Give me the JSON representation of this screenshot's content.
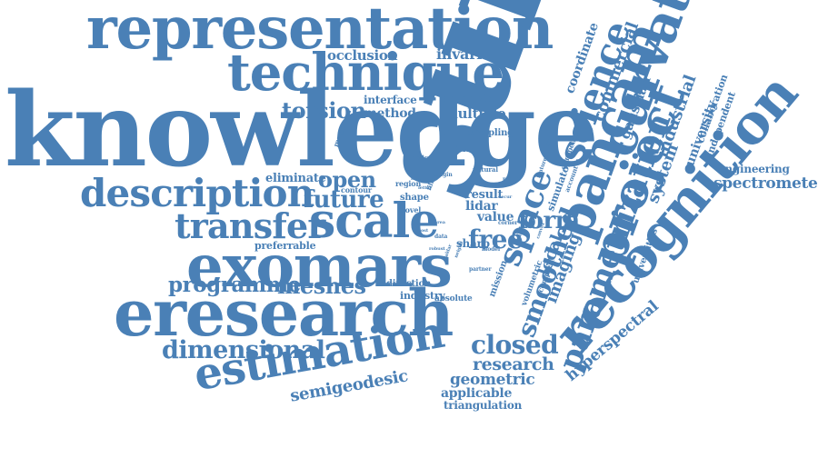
{
  "words": [
    {
      "text": "representation",
      "weight": 62
    },
    {
      "text": "technique",
      "weight": 52
    },
    {
      "text": "occlusion",
      "weight": 14
    },
    {
      "text": "invariant",
      "weight": 15
    },
    {
      "text": "knowledge",
      "weight": 100
    },
    {
      "text": "surface",
      "weight": 100
    },
    {
      "text": "interface",
      "weight": 10
    },
    {
      "text": "torsion",
      "weight": 22
    },
    {
      "text": "method",
      "weight": 13
    },
    {
      "text": "underlying",
      "weight": 9
    },
    {
      "text": "multiple",
      "weight": 14
    },
    {
      "text": "sampling",
      "weight": 8
    },
    {
      "text": "efficient",
      "weight": 6
    },
    {
      "text": "maximum",
      "weight": 6
    },
    {
      "text": "optical",
      "weight": 5
    },
    {
      "text": "eliminate",
      "weight": 12
    },
    {
      "text": "open",
      "weight": 22
    },
    {
      "text": "description",
      "weight": 45
    },
    {
      "text": "future",
      "weight": 23
    },
    {
      "text": "contour",
      "weight": 6
    },
    {
      "text": "region",
      "weight": 6
    },
    {
      "text": "shape",
      "weight": 8
    },
    {
      "text": "novel",
      "weight": 6
    },
    {
      "text": "result",
      "weight": 12
    },
    {
      "text": "lidar",
      "weight": 13
    },
    {
      "text": "value",
      "weight": 12
    },
    {
      "text": "transfer",
      "weight": 38
    },
    {
      "text": "scale",
      "weight": 48
    },
    {
      "text": "form",
      "weight": 23
    },
    {
      "text": "free",
      "weight": 25
    },
    {
      "text": "exomars",
      "weight": 60
    },
    {
      "text": "preferrable",
      "weight": 10
    },
    {
      "text": "sharp",
      "weight": 11
    },
    {
      "text": "programme",
      "weight": 22
    },
    {
      "text": "meshes",
      "weight": 22
    },
    {
      "text": "direction",
      "weight": 8
    },
    {
      "text": "industry",
      "weight": 10
    },
    {
      "text": "absolute",
      "weight": 8
    },
    {
      "text": "eresearch",
      "weight": 68
    },
    {
      "text": "dimensional",
      "weight": 27
    },
    {
      "text": "closed",
      "weight": 26
    },
    {
      "text": "estimation",
      "weight": 46
    },
    {
      "text": "research",
      "weight": 18
    },
    {
      "text": "geometric",
      "weight": 17
    },
    {
      "text": "applicable",
      "weight": 13
    },
    {
      "text": "triangulation",
      "weight": 11
    },
    {
      "text": "semigeodesic",
      "weight": 17
    },
    {
      "text": "space",
      "weight": 33
    },
    {
      "text": "local",
      "weight": 17
    },
    {
      "text": "smoothed",
      "weight": 25
    },
    {
      "text": "imaging",
      "weight": 17
    },
    {
      "text": "pancam",
      "weight": 55
    },
    {
      "text": "science",
      "weight": 36
    },
    {
      "text": "commercial",
      "weight": 18
    },
    {
      "text": "coordinate",
      "weight": 13
    },
    {
      "text": "curvature",
      "weight": 55
    },
    {
      "text": "gaussian",
      "weight": 14
    },
    {
      "text": "project",
      "weight": 50
    },
    {
      "text": "recognition",
      "weight": 62
    },
    {
      "text": "parametrization",
      "weight": 34
    },
    {
      "text": "industrial",
      "weight": 17
    },
    {
      "text": "system",
      "weight": 17
    },
    {
      "text": "university",
      "weight": 13
    },
    {
      "text": "collaboration",
      "weight": 10
    },
    {
      "text": "independent",
      "weight": 10
    },
    {
      "text": "engineering",
      "weight": 11
    },
    {
      "text": "spectrometer",
      "weight": 16
    },
    {
      "text": "hyperspectral",
      "weight": 16
    },
    {
      "text": "universities",
      "weight": 9
    },
    {
      "text": "simulator",
      "weight": 10
    },
    {
      "text": "european",
      "weight": 7
    },
    {
      "text": "account",
      "weight": 6
    },
    {
      "text": "volumetric",
      "weight": 8
    },
    {
      "text": "complete",
      "weight": 7
    },
    {
      "text": "mission",
      "weight": 9
    },
    {
      "text": "crossing",
      "weight": 6
    },
    {
      "text": "natural",
      "weight": 6
    },
    {
      "text": "origin",
      "weight": 5
    },
    {
      "text": "point",
      "weight": 5
    },
    {
      "text": "filter",
      "weight": 6
    },
    {
      "text": "level",
      "weight": 4
    },
    {
      "text": "letter",
      "weight": 4
    },
    {
      "text": "feature",
      "weight": 5
    },
    {
      "text": "corner",
      "weight": 5
    },
    {
      "text": "edge",
      "weight": 6
    },
    {
      "text": "model",
      "weight": 5
    },
    {
      "text": "partner",
      "weight": 5
    },
    {
      "text": "data",
      "weight": 5
    },
    {
      "text": "cost",
      "weight": 4
    },
    {
      "text": "area",
      "weight": 4
    },
    {
      "text": "baldar",
      "weight": 4
    },
    {
      "text": "neighb",
      "weight": 4
    },
    {
      "text": "occur",
      "weight": 4
    },
    {
      "text": "convex",
      "weight": 4
    },
    {
      "text": "robust",
      "weight": 4
    }
  ],
  "colors": {
    "word": "#4a80b6",
    "background": "#ffffff"
  }
}
